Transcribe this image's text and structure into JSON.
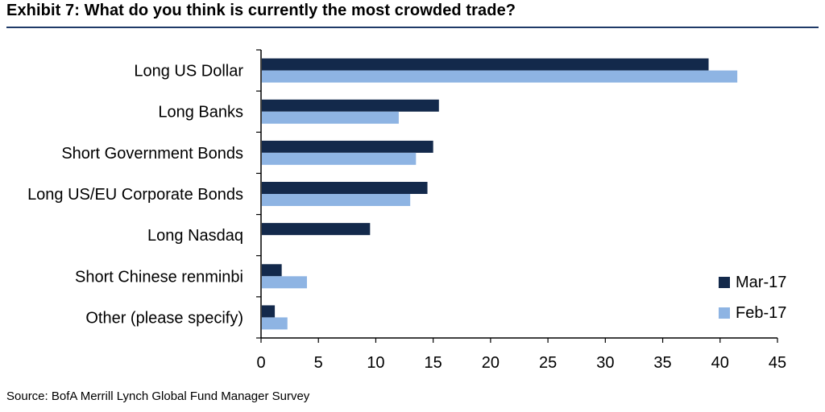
{
  "title": "Exhibit 7: What do you think is currently the most crowded trade?",
  "source": "Source: BofA Merrill Lynch Global Fund Manager Survey",
  "colors": {
    "mar17": "#13294b",
    "feb17": "#8eb4e3",
    "rule": "#1f3a68"
  },
  "chart_data": {
    "type": "bar",
    "orientation": "horizontal",
    "categories": [
      "Long US Dollar",
      "Long Banks",
      "Short Government Bonds",
      "Long US/EU Corporate Bonds",
      "Long Nasdaq",
      "Short Chinese renminbi",
      "Other (please specify)"
    ],
    "series": [
      {
        "name": "Mar-17",
        "values": [
          39,
          15.5,
          15,
          14.5,
          9.5,
          1.8,
          1.2
        ]
      },
      {
        "name": "Feb-17",
        "values": [
          41.5,
          12,
          13.5,
          13,
          null,
          4,
          2.3
        ]
      }
    ],
    "xlim": [
      0,
      45
    ],
    "xticks": [
      0,
      5,
      10,
      15,
      20,
      25,
      30,
      35,
      40,
      45
    ],
    "grid": false,
    "legend_placement": "bottom-right"
  }
}
